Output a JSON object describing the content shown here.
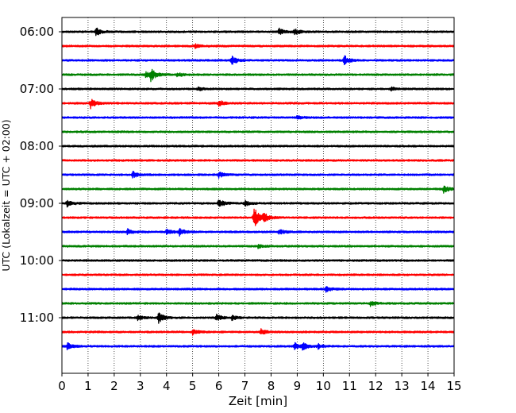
{
  "chart_data": {
    "type": "line",
    "title": "",
    "xlabel": "Zeit  [min]",
    "ylabel": "UTC (Lokalzeit = UTC + 02:00)",
    "xlim": [
      0,
      15
    ],
    "x_ticks": [
      "0",
      "1",
      "2",
      "3",
      "4",
      "5",
      "6",
      "7",
      "8",
      "9",
      "10",
      "11",
      "12",
      "13",
      "14",
      "15"
    ],
    "y_ticks": [
      "06:00",
      "07:00",
      "08:00",
      "09:00",
      "10:00",
      "11:00"
    ],
    "grid": "vertical dotted at each minute",
    "trace_colors": [
      "#000000",
      "#ff0000",
      "#0000ff",
      "#008000"
    ],
    "traces": [
      {
        "start": "06:00",
        "events": [
          [
            1.3,
            2.2
          ],
          [
            8.3,
            1.8
          ],
          [
            8.9,
            1.6
          ]
        ]
      },
      {
        "start": "06:15",
        "events": [
          [
            5.1,
            1.2
          ]
        ]
      },
      {
        "start": "06:30",
        "events": [
          [
            6.5,
            2.4
          ],
          [
            10.8,
            2.6
          ]
        ]
      },
      {
        "start": "06:45",
        "events": [
          [
            3.4,
            3.2
          ],
          [
            3.2,
            1.8
          ],
          [
            4.4,
            1.2
          ]
        ]
      },
      {
        "start": "07:00",
        "events": [
          [
            5.2,
            1.0
          ],
          [
            12.6,
            0.9
          ]
        ]
      },
      {
        "start": "07:15",
        "events": [
          [
            1.1,
            2.8
          ],
          [
            6.0,
            1.8
          ]
        ]
      },
      {
        "start": "07:30",
        "events": [
          [
            9.0,
            1.2
          ]
        ]
      },
      {
        "start": "07:45",
        "events": []
      },
      {
        "start": "08:00",
        "events": []
      },
      {
        "start": "08:15",
        "events": []
      },
      {
        "start": "08:30",
        "events": [
          [
            2.7,
            1.8
          ],
          [
            6.0,
            1.6
          ]
        ]
      },
      {
        "start": "08:45",
        "events": [
          [
            14.6,
            2.0
          ]
        ]
      },
      {
        "start": "09:00",
        "events": [
          [
            0.2,
            2.0
          ],
          [
            6.0,
            2.6
          ],
          [
            7.0,
            1.4
          ]
        ]
      },
      {
        "start": "09:15",
        "events": [
          [
            7.35,
            6.0
          ],
          [
            7.7,
            2.4
          ]
        ]
      },
      {
        "start": "09:30",
        "events": [
          [
            2.5,
            1.6
          ],
          [
            4.0,
            1.6
          ],
          [
            4.5,
            2.2
          ],
          [
            8.3,
            1.4
          ]
        ]
      },
      {
        "start": "09:45",
        "events": [
          [
            7.5,
            1.0
          ]
        ]
      },
      {
        "start": "10:00",
        "events": []
      },
      {
        "start": "10:15",
        "events": []
      },
      {
        "start": "10:30",
        "events": [
          [
            10.1,
            1.6
          ]
        ]
      },
      {
        "start": "10:45",
        "events": [
          [
            11.8,
            1.4
          ]
        ]
      },
      {
        "start": "11:00",
        "events": [
          [
            3.7,
            3.4
          ],
          [
            5.9,
            2.0
          ],
          [
            6.5,
            1.2
          ],
          [
            2.9,
            1.2
          ]
        ]
      },
      {
        "start": "11:15",
        "events": [
          [
            5.0,
            1.6
          ],
          [
            7.6,
            1.6
          ]
        ]
      },
      {
        "start": "11:30",
        "events": [
          [
            0.2,
            2.0
          ],
          [
            8.9,
            2.0
          ],
          [
            9.2,
            1.8
          ],
          [
            9.8,
            1.2
          ]
        ]
      }
    ]
  }
}
